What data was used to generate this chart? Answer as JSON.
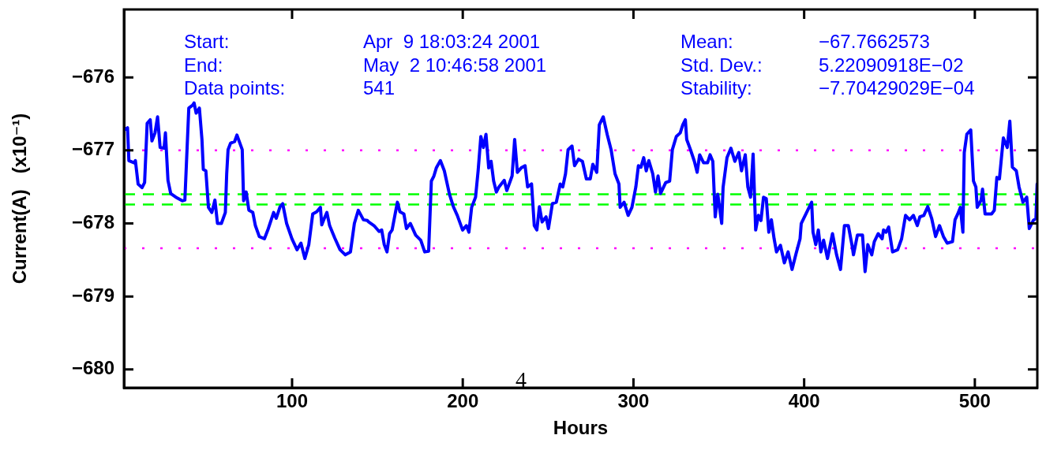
{
  "chart_data": {
    "type": "line",
    "xlabel": "Hours",
    "ylabel": "Current(A)   (x10⁻¹)",
    "xlim": [
      1.5,
      536.6
    ],
    "ylim": [
      -680.25,
      -675.07
    ],
    "xticks": [
      100,
      200,
      300,
      400,
      500
    ],
    "yticks": [
      {
        "value": -680,
        "label": "−680"
      },
      {
        "value": -679,
        "label": "−679"
      },
      {
        "value": -678,
        "label": "−678"
      },
      {
        "value": -677,
        "label": "−677"
      },
      {
        "value": -676,
        "label": "−676"
      }
    ],
    "grid": false,
    "legend": false,
    "marker": "none",
    "line_style": "solid",
    "ref_lines": [
      {
        "axis": "y",
        "value": -677.0,
        "color": "#ff00ff",
        "line_style": "dotted"
      },
      {
        "axis": "y",
        "value": -678.34,
        "color": "#ff00ff",
        "line_style": "dotted"
      },
      {
        "axis": "y",
        "value": -677.6,
        "color": "#00ff00",
        "line_style": "dashed"
      },
      {
        "axis": "y",
        "value": -677.74,
        "color": "#00ff00",
        "line_style": "dashed"
      }
    ],
    "annotations": [
      "Start:",
      "Apr  9 18:03:24 2001",
      "Mean:",
      "−67.7662573",
      "End:",
      "May  2 10:46:58 2001",
      "Std. Dev.:",
      "5.22090918E−02",
      "Data points:",
      "541",
      "Stability:",
      "−7.70429029E−04",
      "4"
    ],
    "series": [
      {
        "color": "#0000ff",
        "x": [
          1.7,
          3.6,
          4.4,
          7.5,
          8.2,
          9.8,
          12.1,
          13.6,
          15.1,
          16.9,
          17.9,
          19.7,
          21.2,
          22.7,
          25.0,
          25.8,
          27.3,
          28.9,
          31.9,
          35.7,
          37.2,
          39.5,
          41.8,
          42.6,
          43.8,
          45.7,
          47.2,
          48.0,
          49.5,
          51.0,
          53.0,
          54.8,
          56.3,
          58.6,
          60.9,
          61.7,
          62.5,
          64.0,
          66.3,
          67.7,
          70.8,
          71.6,
          73.1,
          74.7,
          77.0,
          78.5,
          80.8,
          83.8,
          86.1,
          89.2,
          90.7,
          93.0,
          94.5,
          96.8,
          99.9,
          102.9,
          105.2,
          107.5,
          109.8,
          112.1,
          114.4,
          116.6,
          117.4,
          118.9,
          120.4,
          122.0,
          125.0,
          128.1,
          131.2,
          134.2,
          136.5,
          138.8,
          141.8,
          144.1,
          144.9,
          148.0,
          151.0,
          152.5,
          154.0,
          155.6,
          157.1,
          158.6,
          161.7,
          163.2,
          165.5,
          167.0,
          169.3,
          172.4,
          175.4,
          177.7,
          180.0,
          181.6,
          183.1,
          184.5,
          186.9,
          189.2,
          192.2,
          194.5,
          196.8,
          199.9,
          202.1,
          203.6,
          205.2,
          207.5,
          209.0,
          210.6,
          212.1,
          213.6,
          215.2,
          216.6,
          218.1,
          219.7,
          221.2,
          224.3,
          225.8,
          228.9,
          230.4,
          232.0,
          234.2,
          236.5,
          238.0,
          240.3,
          241.9,
          243.4,
          244.9,
          246.5,
          248.8,
          250.2,
          252.5,
          254.8,
          257.1,
          258.6,
          260.2,
          261.7,
          264.0,
          265.5,
          267.8,
          270.1,
          272.4,
          274.7,
          276.2,
          278.5,
          280.0,
          282.3,
          284.6,
          286.9,
          289.2,
          291.5,
          292.2,
          294.5,
          296.9,
          299.1,
          301.4,
          302.9,
          304.4,
          306.0,
          307.5,
          309.0,
          311.3,
          312.9,
          314.4,
          315.9,
          318.9,
          321.2,
          322.8,
          325.1,
          327.4,
          328.9,
          330.4,
          331.2,
          333.4,
          335.7,
          337.3,
          338.8,
          341.1,
          343.4,
          344.9,
          346.5,
          347.9,
          349.4,
          351.7,
          352.5,
          354.8,
          357.1,
          359.4,
          361.7,
          363.3,
          365.5,
          367.0,
          368.6,
          370.1,
          371.6,
          373.2,
          374.7,
          376.2,
          377.8,
          379.3,
          380.8,
          382.4,
          383.8,
          386.1,
          388.4,
          390.6,
          392.9,
          395.3,
          397.6,
          398.3,
          400.6,
          402.9,
          404.4,
          405.2,
          406.8,
          408.3,
          409.8,
          411.4,
          413.7,
          416.0,
          416.6,
          419.0,
          421.3,
          423.6,
          425.9,
          428.2,
          428.9,
          431.2,
          434.2,
          435.7,
          437.3,
          439.6,
          441.1,
          443.4,
          445.7,
          446.5,
          448.0,
          449.5,
          451.8,
          454.8,
          457.1,
          459.4,
          461.8,
          464.0,
          466.3,
          467.8,
          470.1,
          472.4,
          474.7,
          477.0,
          479.3,
          481.6,
          483.8,
          486.9,
          488.4,
          490.0,
          491.5,
          493.0,
          493.8,
          495.3,
          497.6,
          499.2,
          500.6,
          501.4,
          503.7,
          504.5,
          506.0,
          509.8,
          511.4,
          512.9,
          514.4,
          516.7,
          519.0,
          520.5,
          522.0,
          524.3,
          525.9,
          528.2,
          530.4,
          531.9,
          534.2,
          535.8,
          536.5
        ],
        "values": [
          -676.72,
          -676.69,
          -677.14,
          -677.17,
          -677.14,
          -677.46,
          -677.51,
          -677.44,
          -676.63,
          -676.58,
          -676.87,
          -676.76,
          -676.54,
          -676.96,
          -676.97,
          -676.76,
          -677.41,
          -677.59,
          -677.64,
          -677.69,
          -677.68,
          -676.42,
          -676.38,
          -676.35,
          -676.49,
          -676.42,
          -676.85,
          -677.26,
          -677.28,
          -677.78,
          -677.85,
          -677.68,
          -678.0,
          -678.0,
          -677.85,
          -677.32,
          -676.99,
          -676.9,
          -676.88,
          -676.79,
          -676.99,
          -677.69,
          -677.57,
          -677.82,
          -677.85,
          -678.03,
          -678.18,
          -678.21,
          -678.07,
          -677.85,
          -677.93,
          -677.77,
          -677.73,
          -678.0,
          -678.21,
          -678.36,
          -678.27,
          -678.48,
          -678.29,
          -677.87,
          -677.84,
          -677.78,
          -678.02,
          -677.93,
          -677.85,
          -678.03,
          -678.2,
          -678.36,
          -678.43,
          -678.39,
          -678.0,
          -677.82,
          -677.95,
          -677.96,
          -677.98,
          -678.03,
          -678.11,
          -678.09,
          -678.29,
          -678.39,
          -678.14,
          -678.09,
          -677.71,
          -677.84,
          -677.87,
          -678.07,
          -678.0,
          -678.16,
          -678.23,
          -678.39,
          -678.38,
          -677.42,
          -677.35,
          -677.24,
          -677.14,
          -677.28,
          -677.6,
          -677.77,
          -677.89,
          -678.09,
          -678.03,
          -678.12,
          -677.78,
          -677.64,
          -677.28,
          -676.81,
          -676.96,
          -676.78,
          -677.24,
          -677.15,
          -677.42,
          -677.57,
          -677.5,
          -677.41,
          -677.55,
          -677.35,
          -676.85,
          -677.3,
          -677.24,
          -677.21,
          -677.5,
          -677.46,
          -678.03,
          -678.09,
          -677.77,
          -677.98,
          -677.91,
          -678.07,
          -677.73,
          -677.71,
          -677.46,
          -677.5,
          -677.32,
          -676.99,
          -676.94,
          -677.21,
          -677.12,
          -677.15,
          -677.39,
          -677.39,
          -677.19,
          -677.3,
          -676.65,
          -676.54,
          -676.78,
          -676.99,
          -677.32,
          -677.46,
          -677.78,
          -677.71,
          -677.89,
          -677.78,
          -677.5,
          -677.21,
          -677.23,
          -677.1,
          -677.28,
          -677.14,
          -677.32,
          -677.57,
          -677.35,
          -677.59,
          -677.44,
          -677.42,
          -676.99,
          -676.81,
          -676.76,
          -676.65,
          -676.58,
          -676.85,
          -676.99,
          -677.15,
          -677.3,
          -677.06,
          -677.17,
          -677.17,
          -677.06,
          -677.15,
          -677.91,
          -677.6,
          -678.0,
          -677.51,
          -677.1,
          -676.97,
          -677.15,
          -677.03,
          -677.28,
          -677.06,
          -677.5,
          -677.64,
          -677.05,
          -678.09,
          -677.89,
          -677.96,
          -677.64,
          -677.66,
          -678.12,
          -677.95,
          -678.21,
          -678.39,
          -678.3,
          -678.54,
          -678.39,
          -678.63,
          -678.41,
          -678.21,
          -678.0,
          -677.89,
          -677.78,
          -677.71,
          -678.12,
          -678.29,
          -678.09,
          -678.39,
          -678.23,
          -678.48,
          -678.21,
          -678.14,
          -678.43,
          -678.63,
          -678.03,
          -678.03,
          -678.32,
          -678.43,
          -678.16,
          -678.16,
          -678.66,
          -678.29,
          -678.43,
          -678.25,
          -678.14,
          -678.21,
          -678.09,
          -678.12,
          -678.05,
          -678.39,
          -678.36,
          -678.21,
          -677.89,
          -677.95,
          -677.89,
          -678.03,
          -677.91,
          -677.89,
          -677.77,
          -677.93,
          -678.18,
          -678.03,
          -678.18,
          -678.27,
          -678.25,
          -677.95,
          -677.87,
          -677.78,
          -678.12,
          -677.03,
          -676.78,
          -676.72,
          -677.42,
          -677.5,
          -677.78,
          -677.68,
          -677.53,
          -677.87,
          -677.87,
          -677.82,
          -677.37,
          -677.39,
          -676.83,
          -676.96,
          -676.6,
          -677.23,
          -677.28,
          -677.5,
          -677.71,
          -677.64,
          -678.07,
          -677.96,
          -677.93,
          -677.46
        ]
      }
    ]
  }
}
